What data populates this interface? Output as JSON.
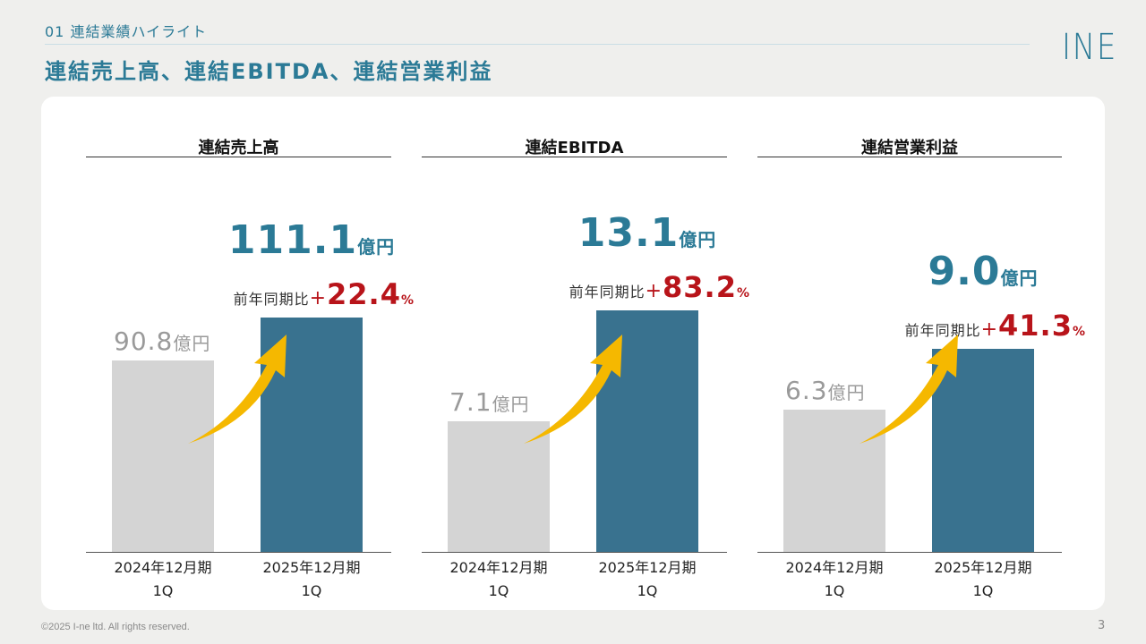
{
  "header": {
    "section_label": "01 連結業績ハイライト",
    "title": "連結売上高、連結EBITDA、連結営業利益",
    "logo_text": "INE"
  },
  "footer": {
    "copyright": "©2025 I-ne ltd. All rights reserved.",
    "page_number": "3"
  },
  "colors": {
    "accent": "#2b7a96",
    "bar_previous": "#d4d4d4",
    "bar_current": "#39728f",
    "growth": "#b8141a",
    "arrow": "#f5b800"
  },
  "chart_data": [
    {
      "type": "bar",
      "title": "連結売上高",
      "categories": [
        "2024年12月期\n1Q",
        "2025年12月期\n1Q"
      ],
      "values": [
        90.8,
        111.1
      ],
      "value_labels": [
        "90.8",
        "111.1"
      ],
      "unit": "億円",
      "growth_prefix": "前年同期比",
      "growth_sign": "+",
      "growth_value": "22.4",
      "growth_unit": "%",
      "ylim": [
        0,
        140
      ],
      "grid": false,
      "legend": "none"
    },
    {
      "type": "bar",
      "title": "連結EBITDA",
      "categories": [
        "2024年12月期\n1Q",
        "2025年12月期\n1Q"
      ],
      "values": [
        7.1,
        13.1
      ],
      "value_labels": [
        "7.1",
        "13.1"
      ],
      "unit": "億円",
      "growth_prefix": "前年同期比",
      "growth_sign": "+",
      "growth_value": "83.2",
      "growth_unit": "%",
      "ylim": [
        0,
        16
      ],
      "grid": false,
      "legend": "none"
    },
    {
      "type": "bar",
      "title": "連結営業利益",
      "categories": [
        "2024年12月期\n1Q",
        "2025年12月期\n1Q"
      ],
      "values": [
        6.3,
        9.0
      ],
      "value_labels": [
        "6.3",
        "9.0"
      ],
      "unit": "億円",
      "growth_prefix": "前年同期比",
      "growth_sign": "+",
      "growth_value": "41.3",
      "growth_unit": "%",
      "ylim": [
        0,
        13.1
      ],
      "grid": false,
      "legend": "none"
    }
  ]
}
